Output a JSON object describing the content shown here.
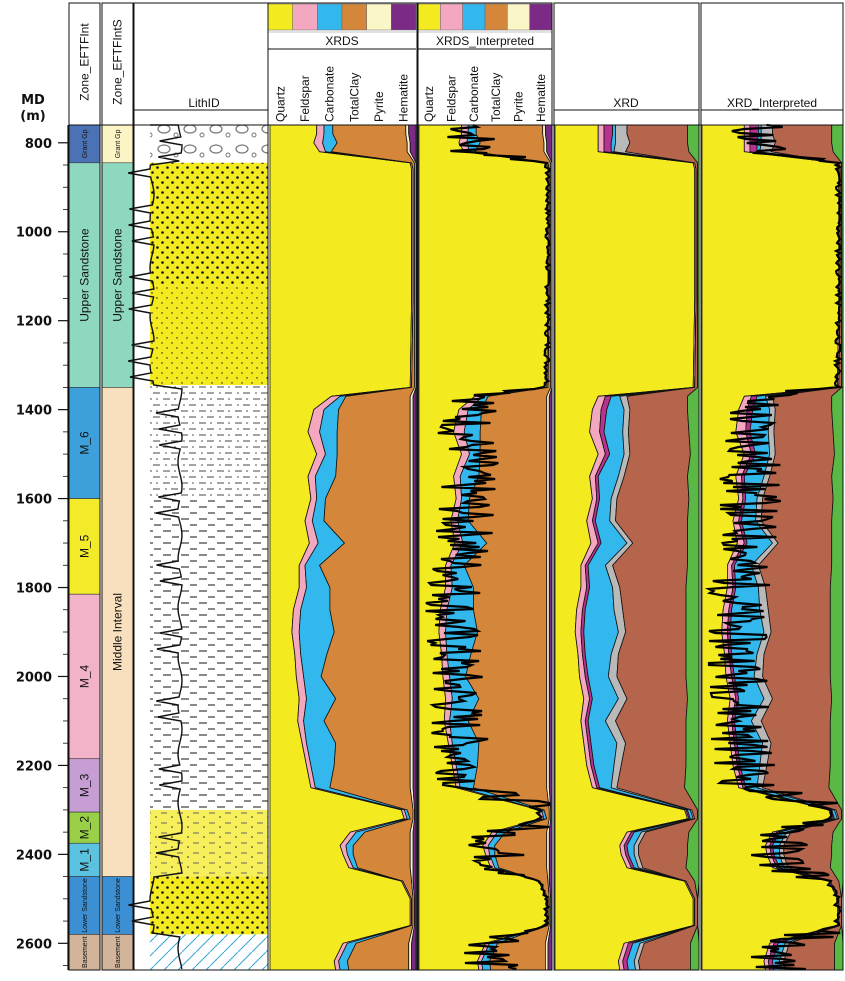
{
  "axis": {
    "label": "MD",
    "unit": "(m)",
    "ticks": [
      800,
      1000,
      1200,
      1400,
      1600,
      1800,
      2000,
      2200,
      2400,
      2600
    ],
    "range": [
      760,
      2660
    ]
  },
  "tracks": {
    "zone_int": {
      "title": "Zone_EFTFInt",
      "zones": [
        {
          "name": "Grant Gp",
          "top": 760,
          "base": 845,
          "color": "#4a72b5"
        },
        {
          "name": "Upper Sandstone",
          "top": 845,
          "base": 1350,
          "color": "#8fd8c0"
        },
        {
          "name": "M_6",
          "top": 1350,
          "base": 1600,
          "color": "#3ea0da"
        },
        {
          "name": "M_5",
          "top": 1600,
          "base": 1815,
          "color": "#f3ea2a"
        },
        {
          "name": "M_4",
          "top": 1815,
          "base": 2185,
          "color": "#f2b2c8"
        },
        {
          "name": "M_3",
          "top": 2185,
          "base": 2305,
          "color": "#c79ed3"
        },
        {
          "name": "M_2",
          "top": 2305,
          "base": 2375,
          "color": "#9ad048"
        },
        {
          "name": "M_1",
          "top": 2375,
          "base": 2450,
          "color": "#5bc2df"
        },
        {
          "name": "Lower Sandstone",
          "top": 2450,
          "base": 2580,
          "color": "#3c8fd2"
        },
        {
          "name": "Basement",
          "top": 2580,
          "base": 2660,
          "color": "#d2b49a"
        }
      ]
    },
    "zone_ints": {
      "title": "Zone_EFTFIntS",
      "zones": [
        {
          "name": "Grant Gp",
          "top": 760,
          "base": 845,
          "color": "#fbf4c4"
        },
        {
          "name": "Upper Sandstone",
          "top": 845,
          "base": 1350,
          "color": "#8fd8c0"
        },
        {
          "name": "Middle Interval",
          "top": 1350,
          "base": 2450,
          "color": "#f8dfbd"
        },
        {
          "name": "Lower Sandstone",
          "top": 2450,
          "base": 2580,
          "color": "#3c8fd2"
        },
        {
          "name": "Basement",
          "top": 2580,
          "base": 2660,
          "color": "#d2b49a"
        }
      ]
    },
    "lith": {
      "title": "LithID"
    }
  },
  "minerals": [
    {
      "name": "Quartz",
      "color": "#f3ea20"
    },
    {
      "name": "Feldspar",
      "color": "#f4a8bf"
    },
    {
      "name": "Carbonate",
      "color": "#33b8ee"
    },
    {
      "name": "TotalClay",
      "color": "#d4873a"
    },
    {
      "name": "Pyrite",
      "color": "#fbf6c8"
    },
    {
      "name": "Hematite",
      "color": "#7b2a86"
    }
  ],
  "chart_data": {
    "type": "area",
    "xrds_title": "XRDS",
    "xrds_interp_title": "XRDS_Interpreted",
    "xrd_title": "XRD",
    "xrd_interp_title": "XRD_Interpreted",
    "depth": [
      780,
      800,
      820,
      845,
      860,
      1000,
      1150,
      1350,
      1370,
      1400,
      1450,
      1500,
      1550,
      1600,
      1650,
      1700,
      1750,
      1800,
      1850,
      1900,
      1950,
      2000,
      2050,
      2100,
      2150,
      2200,
      2250,
      2300,
      2320,
      2350,
      2380,
      2400,
      2430,
      2460,
      2500,
      2560,
      2600,
      2640,
      2660
    ],
    "series": [
      {
        "name": "Quartz",
        "values": [
          0.32,
          0.3,
          0.34,
          0.96,
          0.97,
          0.97,
          0.97,
          0.96,
          0.42,
          0.3,
          0.26,
          0.32,
          0.26,
          0.28,
          0.24,
          0.27,
          0.2,
          0.2,
          0.16,
          0.15,
          0.17,
          0.18,
          0.2,
          0.19,
          0.22,
          0.25,
          0.28,
          0.9,
          0.92,
          0.55,
          0.48,
          0.5,
          0.54,
          0.9,
          0.96,
          0.96,
          0.5,
          0.44,
          0.45
        ]
      },
      {
        "name": "Feldspar",
        "values": [
          0.05,
          0.06,
          0.04,
          0.01,
          0.01,
          0.01,
          0.01,
          0.01,
          0.06,
          0.07,
          0.08,
          0.06,
          0.05,
          0.04,
          0.05,
          0.06,
          0.04,
          0.05,
          0.05,
          0.05,
          0.04,
          0.05,
          0.05,
          0.04,
          0.03,
          0.03,
          0.03,
          0.02,
          0.02,
          0.04,
          0.04,
          0.03,
          0.03,
          0.01,
          0.01,
          0.01,
          0.03,
          0.03,
          0.03
        ]
      },
      {
        "name": "Carbonate",
        "values": [
          0.06,
          0.1,
          0.04,
          0.0,
          0.0,
          0.0,
          0.0,
          0.0,
          0.04,
          0.1,
          0.12,
          0.08,
          0.14,
          0.06,
          0.08,
          0.18,
          0.1,
          0.16,
          0.2,
          0.24,
          0.18,
          0.12,
          0.2,
          0.14,
          0.2,
          0.16,
          0.1,
          0.02,
          0.02,
          0.06,
          0.05,
          0.04,
          0.03,
          0.0,
          0.0,
          0.0,
          0.06,
          0.06,
          0.06
        ]
      },
      {
        "name": "TotalClay",
        "values": [
          0.5,
          0.48,
          0.52,
          0.02,
          0.01,
          0.01,
          0.01,
          0.02,
          0.44,
          0.49,
          0.5,
          0.5,
          0.51,
          0.58,
          0.59,
          0.45,
          0.62,
          0.55,
          0.55,
          0.52,
          0.57,
          0.61,
          0.51,
          0.59,
          0.51,
          0.52,
          0.55,
          0.04,
          0.02,
          0.31,
          0.39,
          0.39,
          0.36,
          0.06,
          0.01,
          0.01,
          0.36,
          0.42,
          0.41
        ]
      },
      {
        "name": "Pyrite",
        "values": [
          0.02,
          0.02,
          0.02,
          0.01,
          0.01,
          0.01,
          0.01,
          0.01,
          0.02,
          0.02,
          0.02,
          0.02,
          0.02,
          0.02,
          0.02,
          0.02,
          0.02,
          0.02,
          0.02,
          0.02,
          0.02,
          0.02,
          0.02,
          0.02,
          0.02,
          0.02,
          0.02,
          0.01,
          0.01,
          0.02,
          0.02,
          0.02,
          0.02,
          0.01,
          0.01,
          0.01,
          0.02,
          0.02,
          0.02
        ]
      },
      {
        "name": "Hematite",
        "values": [
          0.05,
          0.04,
          0.04,
          0.0,
          0.0,
          0.0,
          0.0,
          0.0,
          0.02,
          0.02,
          0.02,
          0.02,
          0.02,
          0.02,
          0.02,
          0.02,
          0.02,
          0.02,
          0.02,
          0.02,
          0.02,
          0.02,
          0.02,
          0.02,
          0.02,
          0.02,
          0.02,
          0.01,
          0.01,
          0.02,
          0.02,
          0.02,
          0.02,
          0.02,
          0.01,
          0.01,
          0.03,
          0.03,
          0.03
        ]
      }
    ],
    "xrd_series": [
      {
        "color": "#f3ea20",
        "values": [
          0.3,
          0.3,
          0.3,
          0.96,
          0.97,
          0.97,
          0.97,
          0.96,
          0.3,
          0.26,
          0.24,
          0.3,
          0.24,
          0.26,
          0.22,
          0.25,
          0.18,
          0.18,
          0.15,
          0.14,
          0.16,
          0.17,
          0.2,
          0.18,
          0.2,
          0.22,
          0.26,
          0.9,
          0.92,
          0.5,
          0.45,
          0.46,
          0.5,
          0.9,
          0.96,
          0.96,
          0.48,
          0.44,
          0.45
        ]
      },
      {
        "color": "#f4a8bf",
        "values": [
          0.04,
          0.04,
          0.04,
          0.01,
          0.01,
          0.01,
          0.01,
          0.01,
          0.05,
          0.06,
          0.07,
          0.05,
          0.04,
          0.03,
          0.04,
          0.05,
          0.03,
          0.04,
          0.04,
          0.04,
          0.03,
          0.04,
          0.04,
          0.03,
          0.03,
          0.03,
          0.03,
          0.01,
          0.01,
          0.03,
          0.03,
          0.03,
          0.03,
          0.01,
          0.01,
          0.01,
          0.03,
          0.03,
          0.03
        ]
      },
      {
        "color": "#b8328f",
        "values": [
          0.06,
          0.05,
          0.05,
          0.0,
          0.0,
          0.0,
          0.0,
          0.0,
          0.04,
          0.04,
          0.03,
          0.03,
          0.02,
          0.02,
          0.02,
          0.02,
          0.02,
          0.02,
          0.02,
          0.02,
          0.02,
          0.02,
          0.02,
          0.02,
          0.02,
          0.02,
          0.02,
          0.01,
          0.01,
          0.02,
          0.02,
          0.02,
          0.02,
          0.0,
          0.0,
          0.0,
          0.03,
          0.03,
          0.03
        ]
      },
      {
        "color": "#33b8ee",
        "values": [
          0.02,
          0.03,
          0.02,
          0.0,
          0.0,
          0.0,
          0.0,
          0.0,
          0.06,
          0.12,
          0.13,
          0.1,
          0.14,
          0.08,
          0.1,
          0.18,
          0.12,
          0.16,
          0.2,
          0.24,
          0.18,
          0.14,
          0.18,
          0.12,
          0.18,
          0.14,
          0.08,
          0.02,
          0.02,
          0.05,
          0.05,
          0.04,
          0.03,
          0.0,
          0.0,
          0.0,
          0.05,
          0.05,
          0.05
        ]
      },
      {
        "color": "#b9b9b9",
        "values": [
          0.08,
          0.1,
          0.08,
          0.0,
          0.0,
          0.0,
          0.0,
          0.0,
          0.05,
          0.04,
          0.04,
          0.04,
          0.04,
          0.04,
          0.04,
          0.04,
          0.05,
          0.05,
          0.06,
          0.05,
          0.05,
          0.06,
          0.06,
          0.07,
          0.06,
          0.05,
          0.04,
          0.01,
          0.01,
          0.03,
          0.03,
          0.03,
          0.03,
          0.0,
          0.0,
          0.0,
          0.03,
          0.03,
          0.03
        ]
      },
      {
        "color": "#b4654c",
        "values": [
          0.42,
          0.4,
          0.44,
          0.02,
          0.01,
          0.01,
          0.01,
          0.02,
          0.42,
          0.4,
          0.42,
          0.42,
          0.44,
          0.5,
          0.5,
          0.38,
          0.52,
          0.46,
          0.44,
          0.42,
          0.47,
          0.48,
          0.42,
          0.49,
          0.42,
          0.45,
          0.47,
          0.04,
          0.02,
          0.3,
          0.34,
          0.34,
          0.3,
          0.06,
          0.02,
          0.02,
          0.32,
          0.36,
          0.35
        ]
      },
      {
        "color": "#5ab844",
        "values": [
          0.08,
          0.08,
          0.07,
          0.01,
          0.01,
          0.01,
          0.01,
          0.01,
          0.08,
          0.08,
          0.07,
          0.06,
          0.08,
          0.07,
          0.08,
          0.08,
          0.08,
          0.09,
          0.09,
          0.09,
          0.09,
          0.09,
          0.08,
          0.09,
          0.09,
          0.09,
          0.1,
          0.01,
          0.01,
          0.07,
          0.08,
          0.08,
          0.09,
          0.03,
          0.0,
          0.0,
          0.06,
          0.06,
          0.06
        ]
      }
    ],
    "lith_bins": [
      {
        "top": 760,
        "base": 845,
        "type": "conglomerate"
      },
      {
        "top": 845,
        "base": 1120,
        "type": "sandstone-coarse"
      },
      {
        "top": 1120,
        "base": 1345,
        "type": "sandstone-fine"
      },
      {
        "top": 1345,
        "base": 1600,
        "type": "mudstone-silty"
      },
      {
        "top": 1600,
        "base": 2300,
        "type": "mudstone"
      },
      {
        "top": 2300,
        "base": 2450,
        "type": "siltstone"
      },
      {
        "top": 2450,
        "base": 2580,
        "type": "sandstone-coarse"
      },
      {
        "top": 2580,
        "base": 2660,
        "type": "basement"
      }
    ]
  }
}
